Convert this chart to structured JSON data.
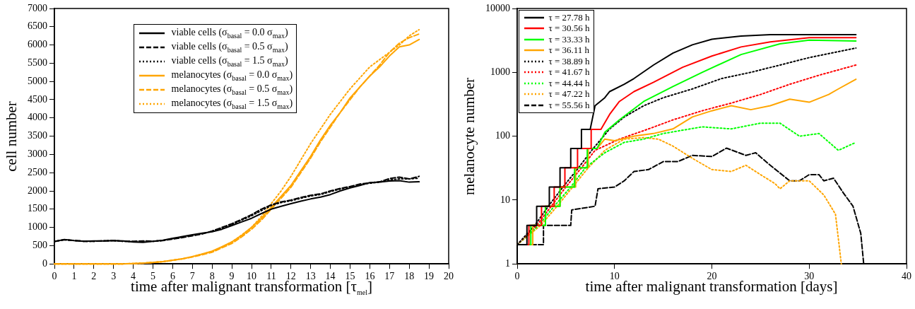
{
  "chart_data": [
    {
      "type": "line",
      "xlabel": "time after malignant transformation [τ$_{mel}$]",
      "ylabel": "cell number",
      "legend": "top",
      "grid": false,
      "xlim": [
        0,
        20
      ],
      "xticks": [
        0,
        1,
        2,
        3,
        4,
        5,
        6,
        7,
        8,
        9,
        10,
        11,
        12,
        13,
        14,
        15,
        16,
        17,
        18,
        19,
        20
      ],
      "ylim": [
        0,
        7000
      ],
      "yticks": [
        0,
        500,
        1000,
        1500,
        2000,
        2500,
        3000,
        3500,
        4000,
        4500,
        5000,
        5500,
        6000,
        6500,
        7000
      ],
      "x": [
        0,
        0.5,
        1,
        1.5,
        2,
        2.5,
        3,
        3.5,
        4,
        4.5,
        5,
        5.5,
        6,
        6.5,
        7,
        7.5,
        8,
        8.5,
        9,
        9.5,
        10,
        10.5,
        11,
        11.5,
        12,
        12.5,
        13,
        13.5,
        14,
        14.5,
        15,
        15.5,
        16,
        16.5,
        17,
        17.5,
        18,
        18.5
      ],
      "series": [
        {
          "name": "viable cells (σ$_{basal}$ = 0.0 σ$_{max}$)",
          "color": "#000000",
          "line_style": "solid",
          "values": [
            610,
            670,
            640,
            620,
            630,
            630,
            640,
            630,
            600,
            590,
            620,
            650,
            700,
            750,
            800,
            840,
            880,
            950,
            1050,
            1150,
            1250,
            1380,
            1500,
            1580,
            1650,
            1720,
            1780,
            1830,
            1900,
            2000,
            2080,
            2150,
            2230,
            2240,
            2270,
            2280,
            2240,
            2250
          ]
        },
        {
          "name": "viable cells (σ$_{basal}$ = 0.5 σ$_{max}$)",
          "color": "#000000",
          "line_style": "dashed",
          "values": [
            620,
            660,
            640,
            620,
            620,
            630,
            640,
            620,
            620,
            630,
            620,
            640,
            680,
            720,
            770,
            820,
            900,
            1000,
            1100,
            1220,
            1350,
            1500,
            1620,
            1700,
            1750,
            1820,
            1880,
            1920,
            2000,
            2070,
            2120,
            2190,
            2220,
            2250,
            2340,
            2380,
            2330,
            2400
          ]
        },
        {
          "name": "viable cells (σ$_{basal}$ = 1.5 σ$_{max}$)",
          "color": "#000000",
          "line_style": "dotted",
          "values": [
            620,
            660,
            640,
            620,
            620,
            630,
            640,
            620,
            610,
            620,
            620,
            640,
            690,
            730,
            780,
            830,
            890,
            980,
            1080,
            1200,
            1320,
            1460,
            1600,
            1680,
            1730,
            1800,
            1860,
            1900,
            1980,
            2050,
            2100,
            2170,
            2210,
            2240,
            2300,
            2330,
            2330,
            2350
          ]
        },
        {
          "name": "melanocytes (σ$_{basal}$ = 0.0 σ$_{max}$)",
          "color": "#ffa500",
          "line_style": "solid",
          "values": [
            0,
            0,
            0,
            0,
            0,
            0,
            0,
            0,
            10,
            20,
            40,
            60,
            100,
            140,
            200,
            270,
            350,
            470,
            600,
            780,
            1000,
            1250,
            1550,
            1850,
            2150,
            2550,
            2950,
            3400,
            3800,
            4150,
            4550,
            4850,
            5150,
            5400,
            5700,
            5950,
            6000,
            6150
          ]
        },
        {
          "name": "melanocytes (σ$_{basal}$ = 0.5 σ$_{max}$)",
          "color": "#ffa500",
          "line_style": "dashed",
          "values": [
            0,
            0,
            0,
            0,
            0,
            0,
            0,
            0,
            10,
            20,
            40,
            60,
            100,
            140,
            190,
            250,
            320,
            440,
            560,
            740,
            950,
            1200,
            1500,
            1800,
            2100,
            2500,
            2900,
            3350,
            3750,
            4150,
            4500,
            4850,
            5150,
            5450,
            5800,
            6050,
            6200,
            6300
          ]
        },
        {
          "name": "melanocytes (σ$_{basal}$ = 1.5 σ$_{max}$)",
          "color": "#ffa500",
          "line_style": "dotted",
          "values": [
            0,
            0,
            0,
            0,
            0,
            0,
            0,
            0,
            10,
            20,
            40,
            60,
            100,
            140,
            200,
            270,
            340,
            460,
            600,
            790,
            1000,
            1300,
            1650,
            2000,
            2400,
            2850,
            3300,
            3700,
            4100,
            4450,
            4800,
            5100,
            5400,
            5600,
            5800,
            6000,
            6250,
            6420
          ]
        }
      ]
    },
    {
      "type": "line",
      "xlabel": "time after malignant transformation [days]",
      "ylabel": "melanocyte number",
      "legend": "top left",
      "grid": false,
      "log": "y",
      "xlim": [
        0,
        40
      ],
      "xticks": [
        0,
        10,
        20,
        30,
        40
      ],
      "ylim": [
        1,
        10000
      ],
      "yticks": [
        1,
        10,
        100,
        1000,
        10000
      ],
      "series": [
        {
          "name": "τ = 27.78 h",
          "color": "#000000",
          "line_style": "solid",
          "x": [
            0,
            0,
            1,
            1,
            2,
            2,
            3.3,
            3.3,
            4.4,
            4.4,
            5.5,
            5.5,
            6.6,
            6.6,
            7.5,
            8,
            9,
            9.5,
            11,
            12,
            14,
            16,
            18,
            20,
            23,
            26,
            30,
            34.8
          ],
          "values": [
            1,
            2,
            2,
            4,
            4,
            8,
            8,
            16,
            16,
            32,
            32,
            64,
            64,
            128,
            128,
            300,
            400,
            500,
            650,
            800,
            1300,
            2000,
            2700,
            3300,
            3700,
            3900,
            3900,
            3900
          ]
        },
        {
          "name": "τ = 30.56 h",
          "color": "#ff0000",
          "line_style": "solid",
          "x": [
            0,
            0,
            1.2,
            1.2,
            2.5,
            2.5,
            3.8,
            3.8,
            4.9,
            4.9,
            6.2,
            6.2,
            7.6,
            7.6,
            8.6,
            9.5,
            10.5,
            12,
            14,
            17,
            20,
            23,
            26,
            30,
            34.8
          ],
          "values": [
            1,
            2,
            2,
            4,
            4,
            8,
            8,
            16,
            16,
            32,
            32,
            64,
            64,
            128,
            128,
            220,
            350,
            500,
            700,
            1200,
            1800,
            2500,
            3000,
            3500,
            3500
          ]
        },
        {
          "name": "τ = 33.33 h",
          "color": "#00ff00",
          "line_style": "solid",
          "x": [
            0,
            0,
            1.4,
            1.4,
            2.9,
            2.9,
            4.4,
            4.4,
            5.9,
            5.9,
            7.2,
            7.2,
            8.2,
            9,
            10.5,
            13,
            16,
            19,
            23,
            27,
            30,
            34.8
          ],
          "values": [
            1,
            2,
            2,
            4,
            4,
            8,
            8,
            16,
            16,
            32,
            32,
            64,
            64,
            115,
            180,
            350,
            600,
            1000,
            1900,
            2800,
            3200,
            3100
          ]
        },
        {
          "name": "τ = 36.11 h",
          "color": "#ffa500",
          "line_style": "solid",
          "x": [
            0,
            0,
            1.6,
            1.6,
            2.9,
            2.9,
            4.4,
            4.4,
            6,
            6,
            7.3,
            7.3,
            8.2,
            9,
            10,
            12,
            14,
            16,
            18,
            20,
            22,
            24,
            26,
            28,
            30,
            32,
            33,
            34.8
          ],
          "values": [
            1,
            2,
            2,
            4,
            4,
            8,
            8,
            16,
            16,
            32,
            32,
            64,
            64,
            90,
            85,
            100,
            110,
            130,
            200,
            250,
            300,
            260,
            300,
            380,
            340,
            450,
            550,
            780
          ]
        },
        {
          "name": "τ = 38.89 h",
          "color": "#000000",
          "line_style": "dotted",
          "x": [
            0,
            1.8,
            3.2,
            4.7,
            6.3,
            7.8,
            9.5,
            11,
            13,
            15,
            18,
            21,
            24,
            27,
            30,
            34.8
          ],
          "values": [
            2,
            4,
            8,
            16,
            32,
            64,
            130,
            200,
            300,
            400,
            550,
            800,
            1000,
            1300,
            1700,
            2400
          ]
        },
        {
          "name": "τ = 41.67 h",
          "color": "#ff0000",
          "line_style": "dotted",
          "x": [
            0,
            2,
            3.5,
            5,
            6.6,
            8,
            10.5,
            13.5,
            16,
            19,
            22,
            25,
            28,
            31,
            34.8
          ],
          "values": [
            2,
            4,
            8,
            16,
            32,
            60,
            90,
            130,
            180,
            250,
            330,
            450,
            650,
            900,
            1300
          ]
        },
        {
          "name": "τ = 44.44 h",
          "color": "#00ff00",
          "line_style": "dotted",
          "x": [
            0,
            2.2,
            3.8,
            5.5,
            7,
            9,
            11,
            13,
            15,
            19,
            22,
            25,
            27,
            29,
            31,
            33,
            34.8
          ],
          "values": [
            2,
            4,
            8,
            16,
            32,
            55,
            80,
            90,
            110,
            140,
            130,
            160,
            160,
            100,
            110,
            60,
            80
          ]
        },
        {
          "name": "τ = 47.22 h",
          "color": "#ffa500",
          "line_style": "dotted",
          "x": [
            0,
            2.4,
            4.1,
            5.7,
            7.3,
            9,
            11,
            13,
            14.5,
            16,
            18,
            20,
            22,
            23.5,
            25,
            26.5,
            27,
            28,
            30,
            31.5,
            32.7,
            33.3
          ],
          "values": [
            2,
            4,
            8,
            16,
            32,
            60,
            90,
            95,
            90,
            70,
            45,
            30,
            28,
            35,
            25,
            18,
            15,
            20,
            20,
            12,
            6,
            1
          ]
        },
        {
          "name": "τ = 55.56 h",
          "color": "#000000",
          "line_style": "dashed",
          "x": [
            0,
            2.7,
            2.7,
            5.5,
            5.6,
            8,
            8.3,
            10,
            11,
            12,
            13.5,
            15,
            16.5,
            18,
            20,
            21.5,
            23.5,
            24.5,
            26,
            28,
            29,
            30,
            31,
            31.5,
            32.5,
            33.5,
            34.5,
            35.3,
            35.6
          ],
          "values": [
            2,
            2,
            4,
            4,
            7,
            8,
            15,
            16,
            20,
            28,
            30,
            40,
            40,
            50,
            48,
            65,
            50,
            55,
            35,
            20,
            20,
            25,
            25,
            20,
            22,
            13,
            8,
            3,
            1
          ]
        }
      ]
    }
  ]
}
